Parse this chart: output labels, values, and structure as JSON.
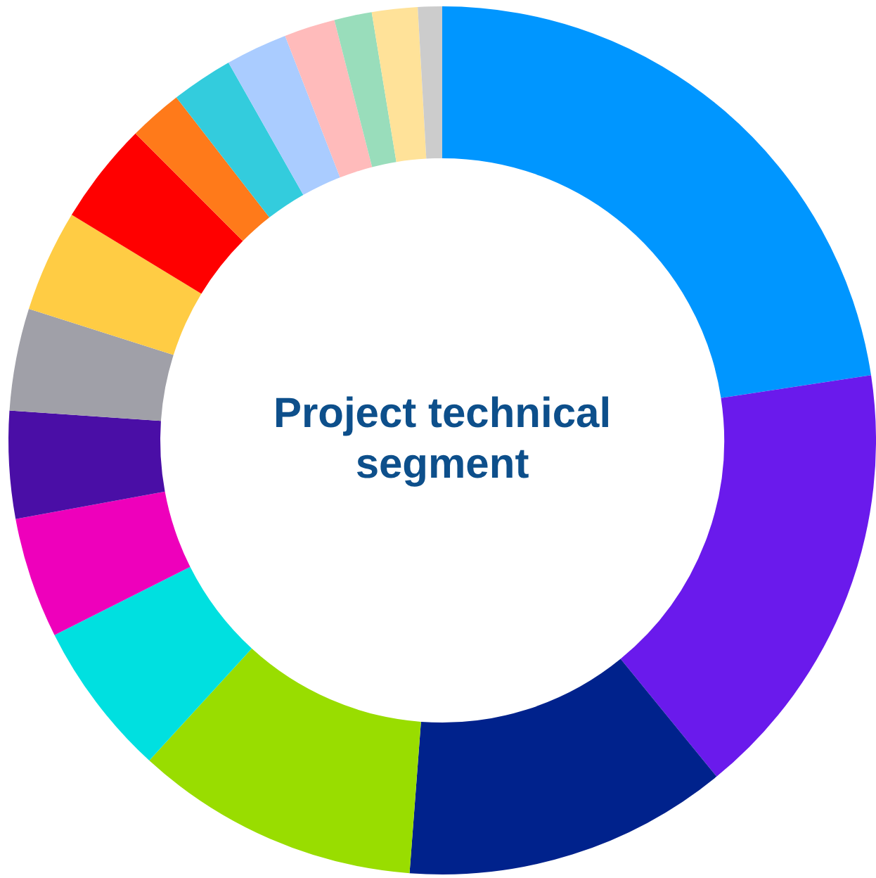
{
  "chart_data": {
    "type": "donut",
    "title": "Project technical segment",
    "categories": [
      null,
      null,
      null,
      null,
      null,
      null,
      null,
      null,
      null,
      null,
      null,
      null,
      null,
      null,
      null,
      null,
      null
    ],
    "values": [
      22.6,
      16.5,
      12.1,
      10.6,
      5.8,
      4.5,
      4.0,
      3.8,
      3.8,
      3.8,
      2.0,
      2.3,
      2.3,
      1.9,
      1.4,
      1.7,
      0.9
    ],
    "colors": [
      "#0096ff",
      "#6a1aec",
      "#00228c",
      "#99dd00",
      "#00e0e0",
      "#ee00bb",
      "#4a0ea6",
      "#a0a0a8",
      "#ffcc44",
      "#ff0000",
      "#ff7a1a",
      "#33ccdd",
      "#aaccff",
      "#ffbbbb",
      "#99ddbb",
      "#ffe299",
      "#cccccc"
    ],
    "legend": false
  }
}
